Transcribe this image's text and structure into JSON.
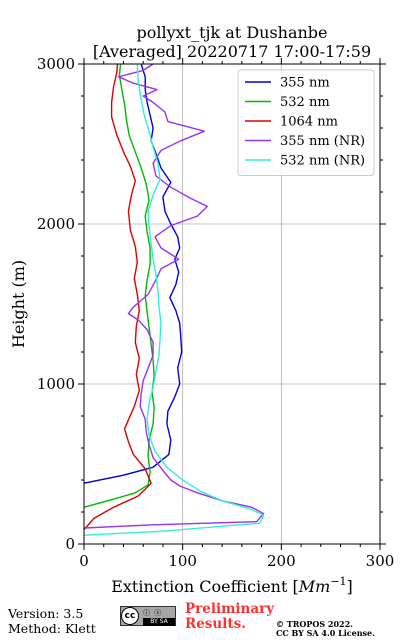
{
  "chart_data": {
    "type": "line",
    "title_line1": "pollyxt_tjk at Dushanbe",
    "title_line2": "[Averaged] 20220717 17:00-17:59",
    "xlabel_prefix": "Extinction Coefficient [",
    "xlabel_unit_base": "Mm",
    "xlabel_unit_exp": "−1",
    "xlabel_suffix": "]",
    "ylabel": "Height (m)",
    "xlim": [
      0,
      300
    ],
    "ylim": [
      0,
      3000
    ],
    "x_ticks": [
      0,
      100,
      200,
      300
    ],
    "y_ticks": [
      0,
      1000,
      2000,
      3000
    ],
    "grid": true,
    "legend_position": "top-right",
    "series": [
      {
        "name": "355 nm",
        "color": "#0000dd",
        "points": [
          [
            0,
            380
          ],
          [
            40,
            430
          ],
          [
            70,
            480
          ],
          [
            86,
            560
          ],
          [
            88,
            650
          ],
          [
            84,
            750
          ],
          [
            85,
            830
          ],
          [
            92,
            920
          ],
          [
            97,
            1000
          ],
          [
            95,
            1100
          ],
          [
            99,
            1200
          ],
          [
            98,
            1300
          ],
          [
            97,
            1380
          ],
          [
            93,
            1460
          ],
          [
            87,
            1540
          ],
          [
            93,
            1620
          ],
          [
            96,
            1700
          ],
          [
            92,
            1780
          ],
          [
            97,
            1850
          ],
          [
            95,
            1920
          ],
          [
            88,
            2000
          ],
          [
            82,
            2080
          ],
          [
            80,
            2170
          ],
          [
            88,
            2260
          ],
          [
            78,
            2350
          ],
          [
            73,
            2440
          ],
          [
            68,
            2520
          ],
          [
            70,
            2600
          ],
          [
            67,
            2680
          ],
          [
            64,
            2760
          ],
          [
            62,
            2840
          ],
          [
            62,
            2920
          ],
          [
            58,
            3000
          ]
        ]
      },
      {
        "name": "532 nm",
        "color": "#00bb00",
        "points": [
          [
            0,
            230
          ],
          [
            30,
            280
          ],
          [
            52,
            320
          ],
          [
            65,
            370
          ],
          [
            67,
            450
          ],
          [
            65,
            550
          ],
          [
            66,
            650
          ],
          [
            70,
            750
          ],
          [
            71,
            850
          ],
          [
            69,
            950
          ],
          [
            71,
            1050
          ],
          [
            70,
            1150
          ],
          [
            68,
            1250
          ],
          [
            66,
            1350
          ],
          [
            64,
            1450
          ],
          [
            62,
            1550
          ],
          [
            64,
            1650
          ],
          [
            67,
            1750
          ],
          [
            67,
            1850
          ],
          [
            64,
            1950
          ],
          [
            62,
            2050
          ],
          [
            66,
            2150
          ],
          [
            63,
            2250
          ],
          [
            58,
            2350
          ],
          [
            52,
            2450
          ],
          [
            46,
            2550
          ],
          [
            43,
            2650
          ],
          [
            41,
            2750
          ],
          [
            38,
            2850
          ],
          [
            36,
            2930
          ],
          [
            37,
            3000
          ]
        ]
      },
      {
        "name": "1064 nm",
        "color": "#dd0000",
        "points": [
          [
            0,
            90
          ],
          [
            10,
            160
          ],
          [
            30,
            230
          ],
          [
            55,
            300
          ],
          [
            68,
            380
          ],
          [
            62,
            470
          ],
          [
            50,
            560
          ],
          [
            45,
            640
          ],
          [
            41,
            720
          ],
          [
            51,
            860
          ],
          [
            56,
            960
          ],
          [
            53,
            1060
          ],
          [
            56,
            1160
          ],
          [
            52,
            1260
          ],
          [
            53,
            1360
          ],
          [
            56,
            1460
          ],
          [
            54,
            1560
          ],
          [
            51,
            1660
          ],
          [
            54,
            1760
          ],
          [
            52,
            1860
          ],
          [
            47,
            1960
          ],
          [
            45,
            2080
          ],
          [
            48,
            2180
          ],
          [
            52,
            2270
          ],
          [
            47,
            2360
          ],
          [
            40,
            2450
          ],
          [
            33,
            2560
          ],
          [
            28,
            2670
          ],
          [
            28,
            2760
          ],
          [
            30,
            2860
          ],
          [
            33,
            2940
          ],
          [
            34,
            3000
          ]
        ]
      },
      {
        "name": "355 nm (NR)",
        "color": "#9933ee",
        "points": [
          [
            0,
            100
          ],
          [
            70,
            120
          ],
          [
            175,
            140
          ],
          [
            182,
            190
          ],
          [
            170,
            230
          ],
          [
            140,
            270
          ],
          [
            115,
            320
          ],
          [
            98,
            360
          ],
          [
            88,
            400
          ],
          [
            80,
            460
          ],
          [
            70,
            540
          ],
          [
            66,
            620
          ],
          [
            63,
            700
          ],
          [
            62,
            780
          ],
          [
            57,
            860
          ],
          [
            58,
            940
          ],
          [
            60,
            1020
          ],
          [
            65,
            1100
          ],
          [
            70,
            1180
          ],
          [
            70,
            1260
          ],
          [
            64,
            1340
          ],
          [
            55,
            1400
          ],
          [
            45,
            1440
          ],
          [
            50,
            1480
          ],
          [
            65,
            1560
          ],
          [
            72,
            1640
          ],
          [
            78,
            1720
          ],
          [
            96,
            1780
          ],
          [
            78,
            1850
          ],
          [
            72,
            1920
          ],
          [
            88,
            1990
          ],
          [
            115,
            2050
          ],
          [
            125,
            2110
          ],
          [
            108,
            2160
          ],
          [
            88,
            2230
          ],
          [
            73,
            2300
          ],
          [
            70,
            2380
          ],
          [
            78,
            2460
          ],
          [
            98,
            2520
          ],
          [
            122,
            2580
          ],
          [
            85,
            2640
          ],
          [
            82,
            2700
          ],
          [
            70,
            2760
          ],
          [
            60,
            2800
          ],
          [
            74,
            2840
          ],
          [
            50,
            2880
          ],
          [
            35,
            2920
          ],
          [
            60,
            2960
          ],
          [
            70,
            3000
          ]
        ]
      },
      {
        "name": "532 nm (NR)",
        "color": "#33eedd",
        "points": [
          [
            0,
            55
          ],
          [
            80,
            80
          ],
          [
            178,
            130
          ],
          [
            182,
            180
          ],
          [
            168,
            220
          ],
          [
            140,
            270
          ],
          [
            118,
            330
          ],
          [
            100,
            400
          ],
          [
            84,
            480
          ],
          [
            72,
            580
          ],
          [
            66,
            680
          ],
          [
            64,
            780
          ],
          [
            66,
            880
          ],
          [
            70,
            980
          ],
          [
            73,
            1080
          ],
          [
            76,
            1180
          ],
          [
            77,
            1280
          ],
          [
            78,
            1380
          ],
          [
            76,
            1480
          ],
          [
            75,
            1580
          ],
          [
            73,
            1680
          ],
          [
            70,
            1780
          ],
          [
            68,
            1880
          ],
          [
            66,
            1980
          ],
          [
            65,
            2080
          ],
          [
            70,
            2180
          ],
          [
            77,
            2280
          ],
          [
            75,
            2380
          ],
          [
            70,
            2480
          ],
          [
            66,
            2580
          ],
          [
            61,
            2680
          ],
          [
            58,
            2780
          ],
          [
            55,
            2880
          ],
          [
            54,
            3000
          ]
        ]
      }
    ]
  },
  "footer": {
    "version": "Version: 3.5",
    "method": "Method: Klett",
    "cc_logo_text": "BY SA",
    "preliminary_line1": "Preliminary",
    "preliminary_line2": "Results.",
    "copyright_line1": "© TROPOS 2022.",
    "copyright_line2": "CC BY SA 4.0 License."
  }
}
